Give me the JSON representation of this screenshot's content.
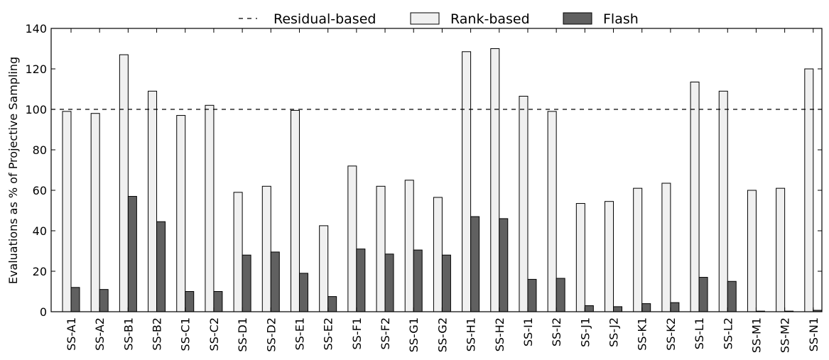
{
  "chart_data": {
    "type": "bar",
    "title": "",
    "xlabel": "",
    "ylabel": "Evaluations as % of Projective Sampling",
    "ylim": [
      0,
      140
    ],
    "yticks": [
      0,
      20,
      40,
      60,
      80,
      100,
      120,
      140
    ],
    "grid": false,
    "legend_position": "top-center",
    "categories": [
      "SS-A1",
      "SS-A2",
      "SS-B1",
      "SS-B2",
      "SS-C1",
      "SS-C2",
      "SS-D1",
      "SS-D2",
      "SS-E1",
      "SS-E2",
      "SS-F1",
      "SS-F2",
      "SS-G1",
      "SS-G2",
      "SS-H1",
      "SS-H2",
      "SS-I1",
      "SS-I2",
      "SS-J1",
      "SS-J2",
      "SS-K1",
      "SS-K2",
      "SS-L1",
      "SS-L2",
      "SS-M1",
      "SS-M2",
      "SS-N1"
    ],
    "reference_line": {
      "name": "Residual-based",
      "value": 100,
      "style": "dashed",
      "color": "#000000"
    },
    "series": [
      {
        "name": "Rank-based",
        "color": "#f0f0f0",
        "values": [
          99,
          98,
          127,
          109,
          97,
          102,
          59,
          62,
          99.5,
          42.5,
          72,
          62,
          65,
          56.5,
          128.5,
          130,
          106.5,
          99,
          53.5,
          54.5,
          61,
          63.5,
          113.5,
          109,
          60,
          61,
          120
        ]
      },
      {
        "name": "Flash",
        "color": "#606060",
        "values": [
          12,
          11,
          57,
          44.5,
          10,
          10,
          28,
          29.5,
          19,
          7.5,
          31,
          28.5,
          30.5,
          28,
          47,
          46,
          16,
          16.5,
          3,
          2.5,
          4,
          4.5,
          17,
          15,
          0.3,
          0.3,
          0.7
        ]
      }
    ]
  }
}
